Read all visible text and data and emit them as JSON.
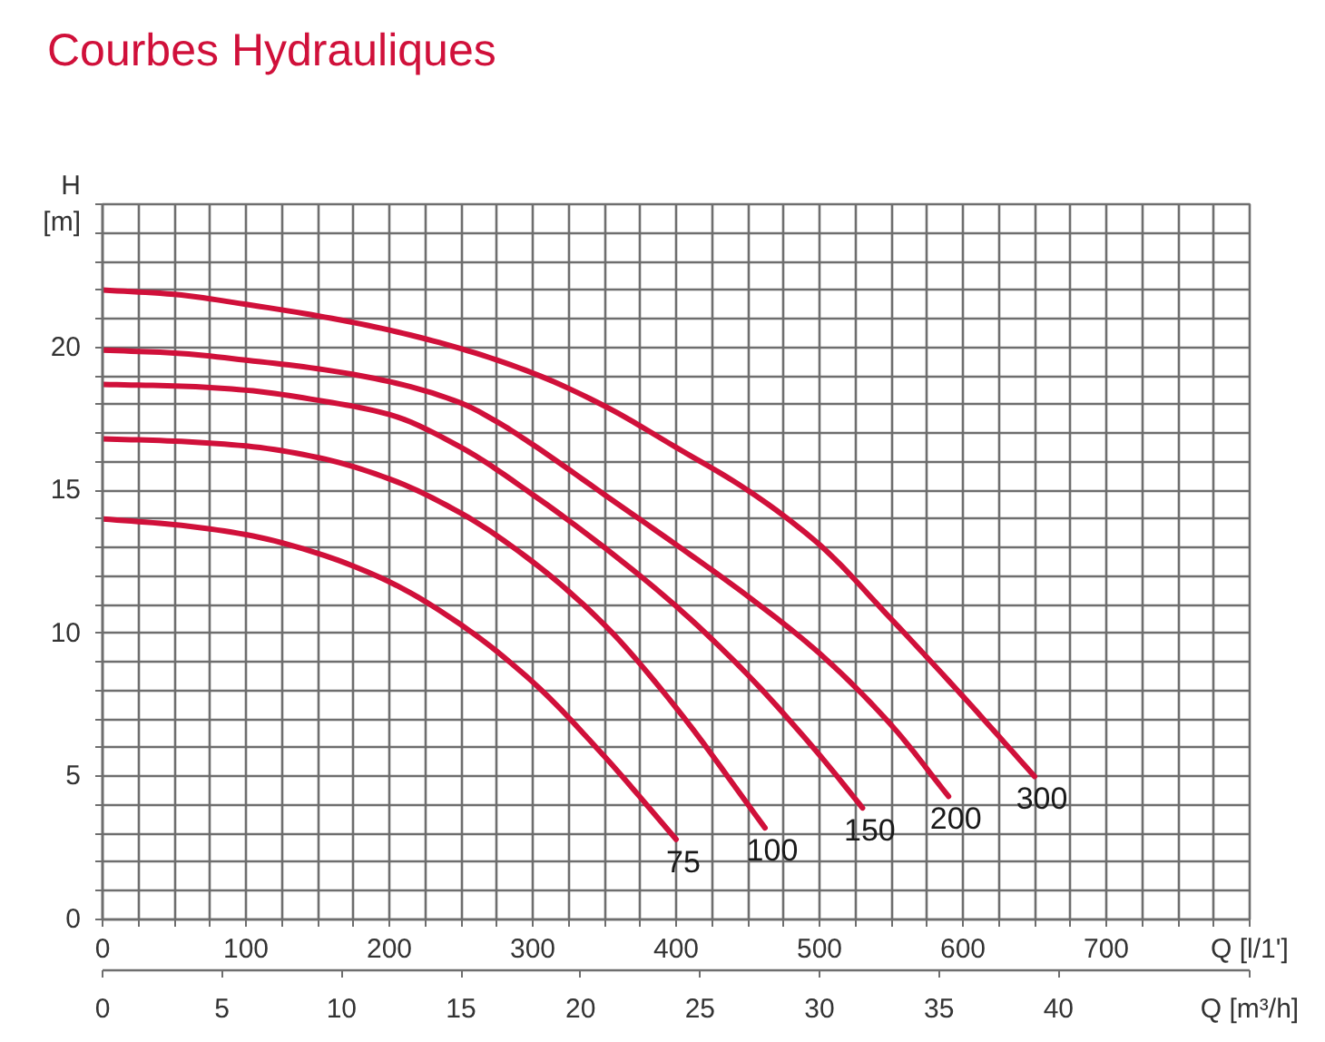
{
  "chart_data": {
    "type": "line",
    "title": "Courbes Hydrauliques",
    "xlabel": "Q [l/1']",
    "x2label": "Q [m³/h]",
    "ylabel": "H [m]",
    "xlim": [
      0,
      800
    ],
    "xticks": [
      0,
      {
        "value": 25,
        "label": null
      },
      {
        "value": 50,
        "label": null
      },
      {
        "value": 75,
        "label": null
      },
      100,
      {
        "value": 125,
        "label": null
      },
      {
        "value": 150,
        "label": null
      },
      {
        "value": 175,
        "label": null
      },
      200,
      {
        "value": 225,
        "label": null
      },
      {
        "value": 250,
        "label": null
      },
      {
        "value": 275,
        "label": null
      },
      300,
      {
        "value": 325,
        "label": null
      },
      {
        "value": 350,
        "label": null
      },
      {
        "value": 375,
        "label": null
      },
      400,
      {
        "value": 425,
        "label": null
      },
      {
        "value": 450,
        "label": null
      },
      {
        "value": 475,
        "label": null
      },
      500,
      {
        "value": 525,
        "label": null
      },
      {
        "value": 550,
        "label": null
      },
      {
        "value": 575,
        "label": null
      },
      600,
      {
        "value": 625,
        "label": null
      },
      {
        "value": 650,
        "label": null
      },
      {
        "value": 675,
        "label": null
      },
      700,
      {
        "value": 725,
        "label": null
      },
      {
        "value": 750,
        "label": null
      },
      {
        "value": 775,
        "label": null
      },
      {
        "value": 800,
        "label": null
      }
    ],
    "x2lim": [
      0,
      48
    ],
    "x2ticks": [
      0,
      5,
      10,
      15,
      20,
      25,
      30,
      35,
      40
    ],
    "ylim": [
      0,
      25
    ],
    "yticks": [
      0,
      {
        "value": 1,
        "label": null
      },
      {
        "value": 2,
        "label": null
      },
      {
        "value": 3,
        "label": null
      },
      {
        "value": 4,
        "label": null
      },
      5,
      {
        "value": 6,
        "label": null
      },
      {
        "value": 7,
        "label": null
      },
      {
        "value": 8,
        "label": null
      },
      {
        "value": 9,
        "label": null
      },
      10,
      {
        "value": 11,
        "label": null
      },
      {
        "value": 12,
        "label": null
      },
      {
        "value": 13,
        "label": null
      },
      {
        "value": 14,
        "label": null
      },
      15,
      {
        "value": 16,
        "label": null
      },
      {
        "value": 17,
        "label": null
      },
      {
        "value": 18,
        "label": null
      },
      {
        "value": 19,
        "label": null
      },
      20,
      {
        "value": 21,
        "label": null
      },
      {
        "value": 22,
        "label": null
      },
      {
        "value": 23,
        "label": null
      },
      {
        "value": 24,
        "label": null
      },
      {
        "value": 25,
        "label": null
      }
    ],
    "grid": true,
    "line_style": "solid",
    "series": [
      {
        "name": "75",
        "color": "#d0103a",
        "x": [
          0,
          50,
          100,
          150,
          200,
          250,
          300,
          350,
          400
        ],
        "values": [
          14.0,
          13.8,
          13.45,
          12.8,
          11.8,
          10.3,
          8.3,
          5.7,
          2.8
        ]
      },
      {
        "name": "100",
        "color": "#d0103a",
        "x": [
          0,
          50,
          100,
          150,
          200,
          250,
          300,
          350,
          400,
          462
        ],
        "values": [
          16.8,
          16.72,
          16.55,
          16.15,
          15.4,
          14.2,
          12.5,
          10.3,
          7.4,
          3.2
        ]
      },
      {
        "name": "150",
        "color": "#d0103a",
        "x": [
          0,
          50,
          100,
          150,
          200,
          250,
          300,
          350,
          400,
          450,
          500,
          530
        ],
        "values": [
          18.7,
          18.65,
          18.5,
          18.15,
          17.65,
          16.5,
          14.85,
          13.0,
          10.95,
          8.55,
          5.75,
          3.9
        ]
      },
      {
        "name": "200",
        "color": "#d0103a",
        "x": [
          0,
          50,
          100,
          150,
          200,
          250,
          275,
          300,
          350,
          400,
          450,
          500,
          550,
          590
        ],
        "values": [
          19.9,
          19.8,
          19.55,
          19.25,
          18.8,
          18.05,
          17.4,
          16.6,
          14.85,
          13.1,
          11.3,
          9.3,
          6.8,
          4.3
        ]
      },
      {
        "name": "300",
        "color": "#d0103a",
        "x": [
          0,
          50,
          100,
          150,
          200,
          250,
          300,
          350,
          400,
          450,
          500,
          550,
          600,
          650
        ],
        "values": [
          22.0,
          21.85,
          21.5,
          21.1,
          20.6,
          19.95,
          19.1,
          17.95,
          16.5,
          15.0,
          13.1,
          10.5,
          7.8,
          5.0
        ]
      }
    ]
  }
}
